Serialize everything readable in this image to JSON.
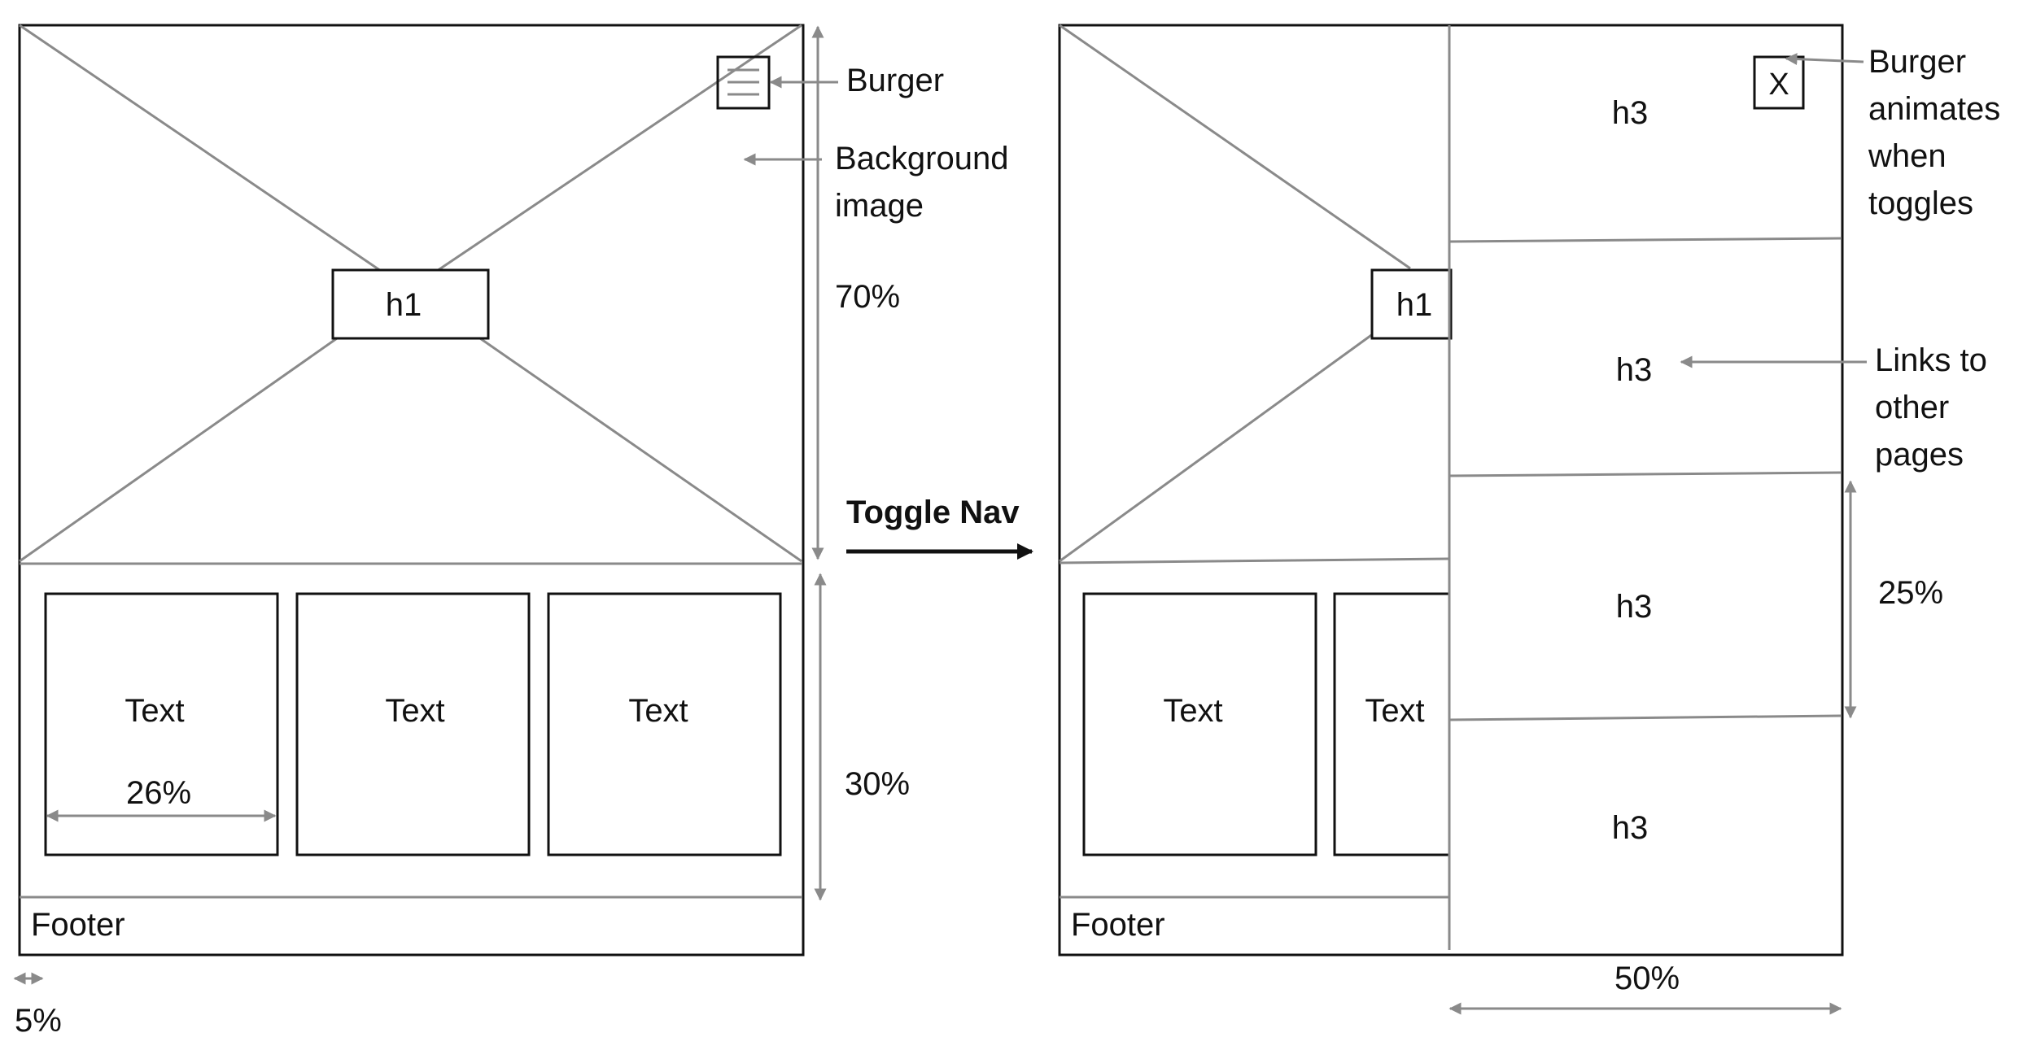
{
  "left": {
    "h1": "h1",
    "cards": [
      "Text",
      "Text",
      "Text"
    ],
    "card_width": "26%",
    "footer": "Footer",
    "margin": "5%"
  },
  "right": {
    "h1": "h1",
    "cards": [
      "Text",
      "Text"
    ],
    "footer": "Footer",
    "close_icon": "X",
    "nav_items": [
      "h3",
      "h3",
      "h3",
      "h3"
    ],
    "nav_width": "50%",
    "nav_item_height": "25%"
  },
  "callouts": {
    "burger": "Burger",
    "background_image": [
      "Background",
      "image"
    ],
    "hero_height": "70%",
    "lower_height": "30%",
    "toggle": "Toggle Nav",
    "burger_animates": [
      "Burger",
      "animates",
      "when",
      "toggles"
    ],
    "links": [
      "Links to",
      "other",
      "pages"
    ]
  },
  "colors": {
    "line": "#8a8a8a",
    "border": "#111111"
  }
}
